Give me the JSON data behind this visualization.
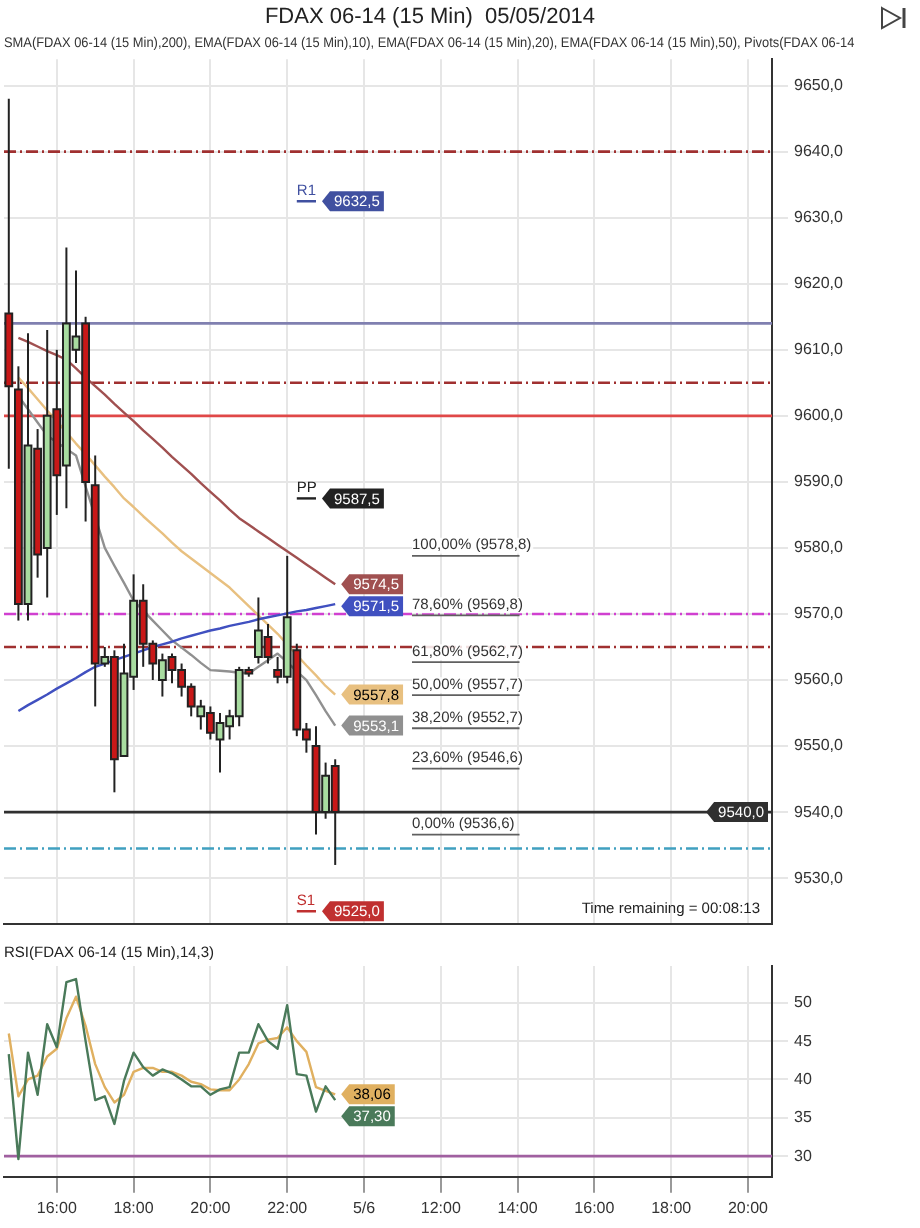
{
  "chart_data": [
    {
      "type": "candlestick",
      "title": "FDAX 06-14 (15 Min)  05/05/2014",
      "subtitle": "SMA(FDAX 06-14 (15 Min),200), EMA(FDAX 06-14 (15 Min),10), EMA(FDAX 06-14 (15 Min),20), EMA(FDAX 06-14 (15 Min),50), Pivots(FDAX 06-14",
      "categories": [
        null,
        null,
        null,
        null,
        null,
        null,
        null,
        null,
        null,
        null,
        null,
        null,
        null,
        null,
        null,
        null,
        null,
        null,
        null,
        null,
        null,
        null,
        null,
        null,
        null,
        null,
        null,
        null,
        null,
        null,
        null,
        null,
        null,
        null,
        null,
        null,
        null,
        null,
        null,
        null,
        null,
        null,
        null,
        null,
        null,
        null,
        null,
        null,
        null,
        null,
        null,
        null,
        null,
        null,
        null,
        null,
        null,
        null,
        null,
        null,
        null,
        null,
        null,
        null,
        null,
        null,
        null,
        null,
        null,
        null,
        null,
        null,
        null,
        null,
        null,
        null,
        null,
        null,
        null,
        null
      ],
      "ohlc": [
        [
          9615.5,
          9648,
          9592,
          9604.5
        ],
        [
          9604,
          9607.5,
          9569,
          9571.5
        ],
        [
          9571.5,
          9612.5,
          9569,
          9595.5
        ],
        [
          9595,
          9598,
          9575.5,
          9579
        ],
        [
          9580,
          9613,
          9572.5,
          9600
        ],
        [
          9601,
          9610,
          9585,
          9591
        ],
        [
          9592.5,
          9625.5,
          9586,
          9614
        ],
        [
          9610,
          9622,
          9608,
          9612
        ],
        [
          9614,
          9615,
          9584,
          9590
        ],
        [
          9589.5,
          9594,
          9556,
          9562.5
        ],
        [
          9562.5,
          9565,
          9562,
          9563.5
        ],
        [
          9563.5,
          9564.5,
          9543,
          9548
        ],
        [
          9548.5,
          9565.5,
          9548.5,
          9561
        ],
        [
          9560.5,
          9576,
          9558.5,
          9572
        ],
        [
          9572,
          9574.5,
          9562,
          9565.5
        ],
        [
          9565.5,
          9566,
          9560,
          9562.5
        ],
        [
          9560,
          9564,
          9557.5,
          9563
        ],
        [
          9563.5,
          9564,
          9559.5,
          9561.5
        ],
        [
          9561.5,
          9562.5,
          9557.5,
          9559
        ],
        [
          9559,
          9559.5,
          9554.5,
          9556
        ],
        [
          9554.5,
          9557,
          9552.5,
          9556
        ],
        [
          9555,
          9556,
          9551,
          9552
        ],
        [
          9551,
          9555,
          9546,
          9553.5
        ],
        [
          9553,
          9555.5,
          9551,
          9554.5
        ],
        [
          9554.5,
          9562,
          9553,
          9561.5
        ],
        [
          9561.5,
          9562,
          9560.5,
          9561
        ],
        [
          9563.5,
          9572.5,
          9562.5,
          9567.5
        ],
        [
          9566.5,
          9568.5,
          9562.5,
          9563.5
        ],
        [
          9561.5,
          9563.5,
          9559.5,
          9560.5
        ],
        [
          9560.5,
          9578.8,
          9559.5,
          9569.5
        ],
        [
          9564.5,
          9565.5,
          9551.5,
          9552.5
        ],
        [
          9552.5,
          9553.5,
          9549,
          9551
        ],
        [
          9550,
          9553,
          9536.6,
          9540
        ],
        [
          9540,
          9547.5,
          9539,
          9545.5
        ],
        [
          9547,
          9548,
          9532,
          9540
        ],
        null,
        null,
        null,
        null,
        null,
        null,
        null,
        null,
        null,
        null,
        null,
        null,
        null,
        null,
        null,
        null,
        null,
        null,
        null,
        null,
        null,
        null,
        null,
        null,
        null,
        null,
        null,
        null,
        null,
        null,
        null,
        null,
        null,
        null,
        null,
        null,
        null,
        null,
        null,
        null,
        null,
        null,
        null,
        null,
        null
      ],
      "series": [
        {
          "type": "line",
          "color": "#a05050",
          "values": [
            null,
            9611.8,
            9611.2,
            9610.5,
            9609.8,
            9609.2,
            9608.5,
            9607.2,
            9605.8,
            9604.5,
            9603.2,
            9601.8,
            9600.5,
            9599.2,
            9597.8,
            9596.5,
            9595.2,
            9593.8,
            9592.5,
            9591.2,
            9589.8,
            9588.5,
            9587.2,
            9585.8,
            9584.5,
            9583.5,
            9582.5,
            9581.5,
            9580.5,
            9579.5,
            9578.5,
            9577.5,
            9576.5,
            9575.5,
            9574.5,
            null,
            null,
            null,
            null,
            null,
            null,
            null,
            null,
            null,
            null,
            null,
            null,
            null,
            null,
            null,
            null,
            null,
            null,
            null,
            null,
            null,
            null,
            null,
            null,
            null,
            null,
            null,
            null,
            null,
            null,
            null,
            null,
            null,
            null,
            null,
            null,
            null,
            null,
            null,
            null,
            null,
            null,
            null,
            null,
            null
          ],
          "value_labels": [
            null,
            null,
            null,
            null,
            null,
            null,
            null,
            null,
            null,
            null,
            null,
            null,
            null,
            null,
            null,
            null,
            null,
            null,
            null,
            null,
            null,
            null,
            null,
            null,
            null,
            null,
            null,
            null,
            null,
            null,
            null,
            null,
            null,
            null,
            "9574,5",
            null,
            null,
            null,
            null,
            null,
            null,
            null,
            null,
            null,
            null,
            null,
            null,
            null,
            null,
            null,
            null,
            null,
            null,
            null,
            null,
            null,
            null,
            null,
            null,
            null,
            null,
            null,
            null,
            null,
            null,
            null,
            null,
            null,
            null,
            null,
            null,
            null,
            null,
            null,
            null,
            null,
            null,
            null,
            null,
            null
          ]
        },
        {
          "type": "line",
          "color": "#4050c0",
          "values": [
            null,
            9555.3,
            9556.2,
            9557,
            9557.8,
            9558.7,
            9559.5,
            9560.3,
            9561.2,
            9562,
            9562.5,
            9563,
            9563.5,
            9564,
            9564.5,
            9565,
            9565.4,
            9565.8,
            9566.3,
            9566.7,
            9567.1,
            9567.5,
            9567.8,
            9568.2,
            9568.5,
            9568.8,
            9569.2,
            9569.5,
            9569.8,
            9570.1,
            9570.4,
            9570.6,
            9570.9,
            9571.2,
            9571.5,
            null,
            null,
            null,
            null,
            null,
            null,
            null,
            null,
            null,
            null,
            null,
            null,
            null,
            null,
            null,
            null,
            null,
            null,
            null,
            null,
            null,
            null,
            null,
            null,
            null,
            null,
            null,
            null,
            null,
            null,
            null,
            null,
            null,
            null,
            null,
            null,
            null,
            null,
            null,
            null,
            null,
            null,
            null,
            null,
            null
          ],
          "value_labels": [
            null,
            null,
            null,
            null,
            null,
            null,
            null,
            null,
            null,
            null,
            null,
            null,
            null,
            null,
            null,
            null,
            null,
            null,
            null,
            null,
            null,
            null,
            null,
            null,
            null,
            null,
            null,
            null,
            null,
            null,
            null,
            null,
            null,
            null,
            "9571,5",
            null,
            null,
            null,
            null,
            null,
            null,
            null,
            null,
            null,
            null,
            null,
            null,
            null,
            null,
            null,
            null,
            null,
            null,
            null,
            null,
            null,
            null,
            null,
            null,
            null,
            null,
            null,
            null,
            null,
            null,
            null,
            null,
            null,
            null,
            null,
            null,
            null,
            null,
            null,
            null,
            null,
            null,
            null,
            null,
            null
          ]
        },
        {
          "type": "line",
          "color": "#e8c080",
          "values": [
            null,
            9605.8,
            9604.2,
            9602.5,
            9600.8,
            9599.2,
            9597.5,
            9595.8,
            9594.2,
            9592.5,
            9590.8,
            9589.2,
            9587.5,
            9586.2,
            9584.8,
            9583.5,
            9582.2,
            9580.8,
            9579.5,
            9578.4,
            9577.3,
            9576.2,
            9575.1,
            9574,
            9572.6,
            9571.2,
            9569.8,
            9568.4,
            9567,
            9565.4,
            9563.8,
            9562.2,
            9560.7,
            9559.1,
            9557.8,
            null,
            null,
            null,
            null,
            null,
            null,
            null,
            null,
            null,
            null,
            null,
            null,
            null,
            null,
            null,
            null,
            null,
            null,
            null,
            null,
            null,
            null,
            null,
            null,
            null,
            null,
            null,
            null,
            null,
            null,
            null,
            null,
            null,
            null,
            null,
            null,
            null,
            null,
            null,
            null,
            null,
            null,
            null,
            null,
            null
          ],
          "value_labels": [
            null,
            null,
            null,
            null,
            null,
            null,
            null,
            null,
            null,
            null,
            null,
            null,
            null,
            null,
            null,
            null,
            null,
            null,
            null,
            null,
            null,
            null,
            null,
            null,
            null,
            null,
            null,
            null,
            null,
            null,
            null,
            null,
            null,
            null,
            "9557,8",
            null,
            null,
            null,
            null,
            null,
            null,
            null,
            null,
            null,
            null,
            null,
            null,
            null,
            null,
            null,
            null,
            null,
            null,
            null,
            null,
            null,
            null,
            null,
            null,
            null,
            null,
            null,
            null,
            null,
            null,
            null,
            null,
            null,
            null,
            null,
            null,
            null,
            null,
            null,
            null,
            null,
            null,
            null,
            null,
            null
          ]
        },
        {
          "type": "line",
          "color": "#909090",
          "values": [
            null,
            9603,
            9601,
            9599,
            9597,
            9596,
            9595,
            9594,
            9589.3,
            9584.7,
            9580,
            9577.3,
            9574.7,
            9572,
            9570.5,
            9569,
            9567.5,
            9566,
            9564.9,
            9563.8,
            9562.6,
            9561.5,
            9561.4,
            9561.3,
            9561.1,
            9561,
            9562,
            9563,
            9564,
            9562.7,
            9561.3,
            9560,
            9557.7,
            9555.3,
            9553.1,
            null,
            null,
            null,
            null,
            null,
            null,
            null,
            null,
            null,
            null,
            null,
            null,
            null,
            null,
            null,
            null,
            null,
            null,
            null,
            null,
            null,
            null,
            null,
            null,
            null,
            null,
            null,
            null,
            null,
            null,
            null,
            null,
            null,
            null,
            null,
            null,
            null,
            null,
            null,
            null,
            null,
            null,
            null,
            null,
            null
          ],
          "value_labels": [
            null,
            null,
            null,
            null,
            null,
            null,
            null,
            null,
            null,
            null,
            null,
            null,
            null,
            null,
            null,
            null,
            null,
            null,
            null,
            null,
            null,
            null,
            null,
            null,
            null,
            null,
            null,
            null,
            null,
            null,
            null,
            null,
            null,
            null,
            "9553,1",
            null,
            null,
            null,
            null,
            null,
            null,
            null,
            null,
            null,
            null,
            null,
            null,
            null,
            null,
            null,
            null,
            null,
            null,
            null,
            null,
            null,
            null,
            null,
            null,
            null,
            null,
            null,
            null,
            null,
            null,
            null,
            null,
            null,
            null,
            null,
            null,
            null,
            null,
            null,
            null,
            null,
            null,
            null,
            null,
            null
          ]
        },
        {
          "type": "line",
          "name": "R1",
          "color": "#4050a0",
          "values": [
            null,
            null,
            null,
            null,
            null,
            null,
            null,
            null,
            null,
            null,
            null,
            null,
            null,
            null,
            null,
            null,
            null,
            null,
            null,
            null,
            null,
            null,
            null,
            null,
            null,
            null,
            null,
            null,
            null,
            null,
            9632.5,
            9632.5,
            9632.5,
            null,
            null,
            null,
            null,
            null,
            null,
            null,
            null,
            null,
            null,
            null,
            null,
            null,
            null,
            null,
            null,
            null,
            null,
            null,
            null,
            null,
            null,
            null,
            null,
            null,
            null,
            null,
            null,
            null,
            null,
            null,
            null,
            null,
            null,
            null,
            null,
            null,
            null,
            null,
            null,
            null,
            null,
            null,
            null,
            null,
            null,
            null
          ],
          "value_labels": [
            null,
            null,
            null,
            null,
            null,
            null,
            null,
            null,
            null,
            null,
            null,
            null,
            null,
            null,
            null,
            null,
            null,
            null,
            null,
            null,
            null,
            null,
            null,
            null,
            null,
            null,
            null,
            null,
            null,
            null,
            null,
            null,
            "9632,5",
            null,
            null,
            null,
            null,
            null,
            null,
            null,
            null,
            null,
            null,
            null,
            null,
            null,
            null,
            null,
            null,
            null,
            null,
            null,
            null,
            null,
            null,
            null,
            null,
            null,
            null,
            null,
            null,
            null,
            null,
            null,
            null,
            null,
            null,
            null,
            null,
            null,
            null,
            null,
            null,
            null,
            null,
            null,
            null,
            null,
            null,
            null
          ]
        },
        {
          "type": "line",
          "name": "PP",
          "color": "#222222",
          "values": [
            null,
            null,
            null,
            null,
            null,
            null,
            null,
            null,
            null,
            null,
            null,
            null,
            null,
            null,
            null,
            null,
            null,
            null,
            null,
            null,
            null,
            null,
            null,
            null,
            null,
            null,
            null,
            null,
            null,
            null,
            9587.5,
            9587.5,
            9587.5,
            null,
            null,
            null,
            null,
            null,
            null,
            null,
            null,
            null,
            null,
            null,
            null,
            null,
            null,
            null,
            null,
            null,
            null,
            null,
            null,
            null,
            null,
            null,
            null,
            null,
            null,
            null,
            null,
            null,
            null,
            null,
            null,
            null,
            null,
            null,
            null,
            null,
            null,
            null,
            null,
            null,
            null,
            null,
            null,
            null,
            null,
            null
          ],
          "value_labels": [
            null,
            null,
            null,
            null,
            null,
            null,
            null,
            null,
            null,
            null,
            null,
            null,
            null,
            null,
            null,
            null,
            null,
            null,
            null,
            null,
            null,
            null,
            null,
            null,
            null,
            null,
            null,
            null,
            null,
            null,
            null,
            null,
            "9587,5",
            null,
            null,
            null,
            null,
            null,
            null,
            null,
            null,
            null,
            null,
            null,
            null,
            null,
            null,
            null,
            null,
            null,
            null,
            null,
            null,
            null,
            null,
            null,
            null,
            null,
            null,
            null,
            null,
            null,
            null,
            null,
            null,
            null,
            null,
            null,
            null,
            null,
            null,
            null,
            null,
            null,
            null,
            null,
            null,
            null,
            null,
            null
          ]
        },
        {
          "type": "line",
          "name": "S1",
          "color": "#c03030",
          "values": [
            null,
            null,
            null,
            null,
            null,
            null,
            null,
            null,
            null,
            null,
            null,
            null,
            null,
            null,
            null,
            null,
            null,
            null,
            null,
            null,
            null,
            null,
            null,
            null,
            null,
            null,
            null,
            null,
            null,
            null,
            9525,
            9525,
            9525,
            null,
            null,
            null,
            null,
            null,
            null,
            null,
            null,
            null,
            null,
            null,
            null,
            null,
            null,
            null,
            null,
            null,
            null,
            null,
            null,
            null,
            null,
            null,
            null,
            null,
            null,
            null,
            null,
            null,
            null,
            null,
            null,
            null,
            null,
            null,
            null,
            null,
            null,
            null,
            null,
            null,
            null,
            null,
            null,
            null,
            null,
            null
          ],
          "value_labels": [
            null,
            null,
            null,
            null,
            null,
            null,
            null,
            null,
            null,
            null,
            null,
            null,
            null,
            null,
            null,
            null,
            null,
            null,
            null,
            null,
            null,
            null,
            null,
            null,
            null,
            null,
            null,
            null,
            null,
            null,
            null,
            null,
            "9525,0",
            null,
            null,
            null,
            null,
            null,
            null,
            null,
            null,
            null,
            null,
            null,
            null,
            null,
            null,
            null,
            null,
            null,
            null,
            null,
            null,
            null,
            null,
            null,
            null,
            null,
            null,
            null,
            null,
            null,
            null,
            null,
            null,
            null,
            null,
            null,
            null,
            null,
            null,
            null,
            null,
            null,
            null,
            null,
            null,
            null,
            null,
            null
          ]
        }
      ],
      "ylim": [
        9523,
        9654
      ],
      "yticks": [
        {
          "value": 9530,
          "label": "9530,0"
        },
        {
          "value": 9540,
          "label": "9540,0"
        },
        {
          "value": 9550,
          "label": "9550,0"
        },
        {
          "value": 9560,
          "label": "9560,0"
        },
        {
          "value": 9570,
          "label": "9570,0"
        },
        {
          "value": 9580,
          "label": "9580,0"
        },
        {
          "value": 9590,
          "label": "9590,0"
        },
        {
          "value": 9600,
          "label": "9600,0"
        },
        {
          "value": 9610,
          "label": "9610,0"
        },
        {
          "value": 9620,
          "label": "9620,0"
        },
        {
          "value": 9630,
          "label": "9630,0"
        },
        {
          "value": 9640,
          "label": "9640,0"
        },
        {
          "value": 9650,
          "label": "9650,0"
        }
      ],
      "tick_labels": "y",
      "grid": true,
      "ref_lines": [
        {
          "axis": "y",
          "value": 9640,
          "color": "#a03030",
          "line_style": "dashed"
        },
        {
          "axis": "y",
          "value": 9614,
          "color": "#8080b0",
          "line_style": "solid"
        },
        {
          "axis": "y",
          "value": 9605,
          "color": "#a03030",
          "line_style": "dashed"
        },
        {
          "axis": "y",
          "value": 9600,
          "color": "#e04848",
          "line_style": "solid"
        },
        {
          "axis": "y",
          "value": 9570,
          "color": "#d040d0",
          "line_style": "dashed"
        },
        {
          "axis": "y",
          "value": 9565,
          "color": "#a03030",
          "line_style": "dashed"
        },
        {
          "axis": "y",
          "value": 9540,
          "color": "#303030",
          "line_style": "solid",
          "label": "9540,0"
        },
        {
          "axis": "y",
          "value": 9534.5,
          "color": "#40a0c0",
          "line_style": "dashed"
        },
        {
          "axis": "y",
          "value": 9578.8,
          "color": "#606060",
          "label": "100,00% (9578,8)"
        },
        {
          "axis": "y",
          "value": 9569.8,
          "color": "#606060",
          "label": "78,60% (9569,8)"
        },
        {
          "axis": "y",
          "value": 9562.7,
          "color": "#606060",
          "label": "61,80% (9562,7)"
        },
        {
          "axis": "y",
          "value": 9557.7,
          "color": "#606060",
          "label": "50,00% (9557,7)"
        },
        {
          "axis": "y",
          "value": 9552.7,
          "color": "#606060",
          "label": "38,20% (9552,7)"
        },
        {
          "axis": "y",
          "value": 9546.6,
          "color": "#606060",
          "label": "23,60% (9546,6)"
        },
        {
          "axis": "y",
          "value": 9536.6,
          "color": "#606060",
          "label": "0,00% (9536,6)"
        }
      ],
      "annotations": [
        "Time remaining = 00:08:13"
      ]
    },
    {
      "type": "line",
      "title": "RSI(FDAX 06-14 (15 Min),14,3)",
      "categories": [
        null,
        null,
        null,
        null,
        null,
        "16:00",
        null,
        null,
        null,
        null,
        null,
        null,
        null,
        "18:00",
        null,
        null,
        null,
        null,
        null,
        null,
        null,
        "20:00",
        null,
        null,
        null,
        null,
        null,
        null,
        null,
        "22:00",
        null,
        null,
        null,
        null,
        null,
        null,
        null,
        "5/6",
        null,
        null,
        null,
        null,
        null,
        null,
        null,
        "12:00",
        null,
        null,
        null,
        null,
        null,
        null,
        null,
        "14:00",
        null,
        null,
        null,
        null,
        null,
        null,
        null,
        "16:00",
        null,
        null,
        null,
        null,
        null,
        null,
        null,
        "18:00",
        null,
        null,
        null,
        null,
        null,
        null,
        null,
        "20:00",
        null,
        null
      ],
      "series": [
        {
          "color": "#4a7a5a",
          "values": [
            43.3,
            29.6,
            43.5,
            38,
            47.2,
            44.2,
            52.7,
            53.1,
            45,
            37.3,
            37.8,
            34.2,
            39.8,
            43.5,
            41.6,
            40.5,
            41.3,
            40.8,
            40,
            39.1,
            39.1,
            38,
            38.7,
            39,
            43.5,
            43.5,
            47.2,
            45,
            44,
            49.7,
            40.7,
            40.5,
            35.8,
            39.1,
            37.3,
            null,
            null,
            null,
            null,
            null,
            null,
            null,
            null,
            null,
            null,
            null,
            null,
            null,
            null,
            null,
            null,
            null,
            null,
            null,
            null,
            null,
            null,
            null,
            null,
            null,
            null,
            null,
            null,
            null,
            null,
            null,
            null,
            null,
            null,
            null,
            null,
            null,
            null,
            null,
            null,
            null,
            null,
            null,
            null,
            null
          ],
          "value_labels": [
            null,
            null,
            null,
            null,
            null,
            null,
            null,
            null,
            null,
            null,
            null,
            null,
            null,
            null,
            null,
            null,
            null,
            null,
            null,
            null,
            null,
            null,
            null,
            null,
            null,
            null,
            null,
            null,
            null,
            null,
            null,
            null,
            null,
            null,
            "37,30",
            null,
            null,
            null,
            null,
            null,
            null,
            null,
            null,
            null,
            null,
            null,
            null,
            null,
            null,
            null,
            null,
            null,
            null,
            null,
            null,
            null,
            null,
            null,
            null,
            null,
            null,
            null,
            null,
            null,
            null,
            null,
            null,
            null,
            null,
            null,
            null,
            null,
            null,
            null,
            null,
            null,
            null,
            null,
            null,
            null
          ]
        },
        {
          "color": "#e0b060",
          "values": [
            46,
            37.8,
            40,
            40.5,
            43,
            44,
            48,
            50.8,
            47,
            42,
            39,
            37,
            38,
            41,
            41.5,
            41.5,
            41,
            41,
            40.5,
            39.7,
            39.4,
            38.7,
            38.6,
            38.6,
            40,
            42,
            44.7,
            45.2,
            45.4,
            46.8,
            45,
            43.6,
            39,
            38.5,
            38.06,
            null,
            null,
            null,
            null,
            null,
            null,
            null,
            null,
            null,
            null,
            null,
            null,
            null,
            null,
            null,
            null,
            null,
            null,
            null,
            null,
            null,
            null,
            null,
            null,
            null,
            null,
            null,
            null,
            null,
            null,
            null,
            null,
            null,
            null,
            null,
            null,
            null,
            null,
            null,
            null,
            null,
            null,
            null,
            null,
            null
          ],
          "value_labels": [
            null,
            null,
            null,
            null,
            null,
            null,
            null,
            null,
            null,
            null,
            null,
            null,
            null,
            null,
            null,
            null,
            null,
            null,
            null,
            null,
            null,
            null,
            null,
            null,
            null,
            null,
            null,
            null,
            null,
            null,
            null,
            null,
            null,
            null,
            "38,06",
            null,
            null,
            null,
            null,
            null,
            null,
            null,
            null,
            null,
            null,
            null,
            null,
            null,
            null,
            null,
            null,
            null,
            null,
            null,
            null,
            null,
            null,
            null,
            null,
            null,
            null,
            null,
            null,
            null,
            null,
            null,
            null,
            null,
            null,
            null,
            null,
            null,
            null,
            null,
            null,
            null,
            null,
            null,
            null,
            null
          ]
        }
      ],
      "ylim": [
        27.3,
        54.8
      ],
      "yticks": [
        30,
        35,
        40,
        45,
        50
      ],
      "grid": true,
      "ref_lines": [
        {
          "axis": "y",
          "value": 30,
          "color": "#a060a0",
          "line_style": "solid"
        }
      ]
    }
  ]
}
